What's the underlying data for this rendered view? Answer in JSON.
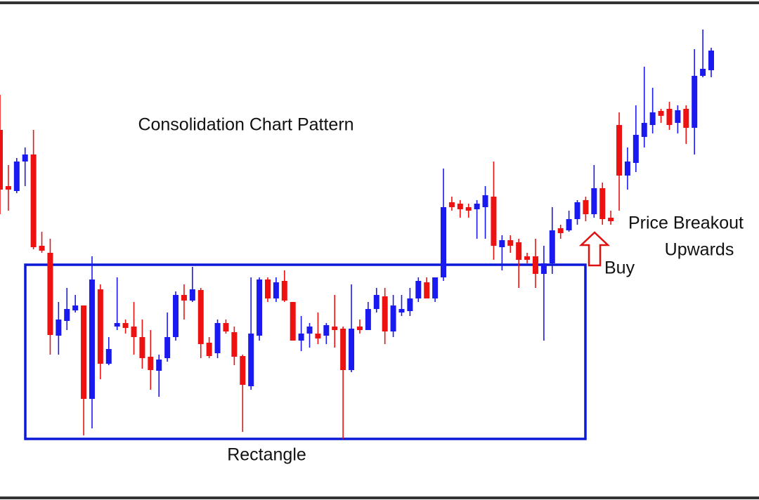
{
  "chart_data": {
    "type": "candlestick",
    "title": "Consolidation Chart Pattern",
    "annotations": [
      "Price Breakout",
      "Upwards",
      "Buy"
    ],
    "rectangle": {
      "label": "Rectangle",
      "top": 331,
      "bottom": 83,
      "color": "#0b19d6"
    },
    "up_color": "#1a1af0",
    "down_color": "#ee1111",
    "ylim": [
      0,
      700
    ],
    "categories": [
      null,
      null,
      null,
      null,
      null,
      null,
      null,
      null,
      null,
      null,
      null,
      null,
      null,
      null,
      null,
      null,
      null,
      null,
      null,
      null,
      null,
      null,
      null,
      null,
      null,
      null,
      null,
      null,
      null,
      null,
      null,
      null,
      null,
      null,
      null,
      null,
      null,
      null,
      null,
      null,
      null,
      null,
      null,
      null,
      null,
      null,
      null,
      null,
      null,
      null,
      null,
      null,
      null,
      null,
      null,
      null,
      null,
      null,
      null,
      null,
      null,
      null,
      null,
      null,
      null,
      null,
      null,
      null,
      null,
      null,
      null,
      null,
      null,
      null,
      null,
      null,
      null,
      null,
      null,
      null,
      null,
      null,
      null,
      null,
      null,
      null
    ],
    "open": [
      523,
      443,
      436,
      478,
      488,
      358,
      348,
      230,
      251,
      266,
      273,
      140,
      296,
      190,
      243,
      248,
      243,
      228,
      200,
      180,
      198,
      228,
      288,
      280,
      295,
      220,
      205,
      248,
      235,
      201,
      158,
      230,
      310,
      283,
      308,
      278,
      223,
      233,
      233,
      230,
      243,
      240,
      181,
      243,
      238,
      268,
      286,
      236,
      263,
      265,
      283,
      306,
      283,
      313,
      420,
      418,
      413,
      410,
      413,
      428,
      356,
      366,
      363,
      343,
      343,
      318,
      333,
      383,
      380,
      396,
      423,
      403,
      440,
      398,
      530,
      458,
      476,
      513,
      530,
      550,
      553,
      533,
      553,
      526,
      600,
      608
    ],
    "high": [
      573,
      473,
      483,
      498,
      523,
      378,
      368,
      278,
      298,
      288,
      273,
      343,
      303,
      228,
      313,
      253,
      278,
      253,
      238,
      203,
      263,
      293,
      303,
      328,
      298,
      228,
      253,
      253,
      243,
      203,
      313,
      313,
      313,
      313,
      323,
      278,
      258,
      248,
      263,
      248,
      288,
      243,
      303,
      253,
      278,
      298,
      298,
      288,
      288,
      298,
      313,
      313,
      313,
      468,
      428,
      423,
      418,
      423,
      443,
      478,
      373,
      373,
      368,
      348,
      368,
      358,
      413,
      388,
      408,
      423,
      428,
      473,
      448,
      408,
      548,
      498,
      558,
      613,
      583,
      553,
      563,
      558,
      558,
      638,
      666,
      640
    ],
    "low": [
      403,
      408,
      433,
      443,
      353,
      348,
      203,
      203,
      238,
      263,
      88,
      98,
      168,
      188,
      238,
      233,
      203,
      183,
      153,
      143,
      193,
      223,
      253,
      278,
      198,
      198,
      198,
      233,
      188,
      93,
      153,
      223,
      278,
      278,
      278,
      223,
      208,
      213,
      218,
      218,
      213,
      83,
      178,
      233,
      238,
      263,
      218,
      228,
      258,
      258,
      278,
      283,
      278,
      308,
      408,
      398,
      398,
      368,
      368,
      338,
      323,
      348,
      298,
      333,
      298,
      223,
      318,
      368,
      378,
      388,
      393,
      398,
      388,
      388,
      408,
      438,
      463,
      498,
      518,
      533,
      523,
      518,
      503,
      488,
      598,
      598
    ],
    "close": [
      438,
      438,
      478,
      488,
      356,
      351,
      231,
      253,
      268,
      273,
      140,
      310,
      190,
      211,
      248,
      241,
      228,
      198,
      181,
      196,
      228,
      288,
      280,
      296,
      218,
      201,
      248,
      236,
      200,
      160,
      233,
      310,
      283,
      306,
      280,
      223,
      233,
      243,
      226,
      245,
      238,
      181,
      240,
      238,
      268,
      288,
      236,
      273,
      268,
      283,
      308,
      283,
      313,
      413,
      413,
      410,
      408,
      418,
      430,
      358,
      366,
      358,
      338,
      338,
      318,
      333,
      380,
      376,
      396,
      420,
      403,
      440,
      396,
      393,
      458,
      478,
      516,
      533,
      548,
      543,
      530,
      551,
      526,
      600,
      610,
      636
    ]
  }
}
